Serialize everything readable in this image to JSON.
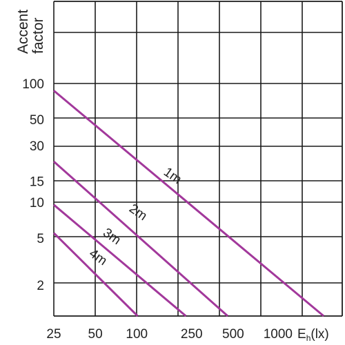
{
  "chart_data": {
    "type": "line",
    "title": "",
    "ylabel": [
      "Accent",
      "factor"
    ],
    "xlabel": "",
    "x_unit": {
      "main": "E",
      "sub": "h",
      "rest": "(lx)"
    },
    "x_ticks": [
      {
        "value": 25,
        "label": "25"
      },
      {
        "value": 50,
        "label": "50"
      },
      {
        "value": 100,
        "label": "100"
      },
      {
        "value": 250,
        "label": "250"
      },
      {
        "value": 500,
        "label": "500"
      },
      {
        "value": 1000,
        "label": "1000"
      }
    ],
    "y_ticks": [
      {
        "value": 100,
        "label": "100"
      },
      {
        "value": 50,
        "label": "50"
      },
      {
        "value": 30,
        "label": "30"
      },
      {
        "value": 15,
        "label": "15"
      },
      {
        "value": 10,
        "label": "10"
      },
      {
        "value": 5,
        "label": "5"
      },
      {
        "value": 2,
        "label": "2"
      }
    ],
    "grid": true,
    "series": [
      {
        "name": "1m",
        "x": [
          25,
          2500
        ],
        "y": [
          87,
          1
        ]
      },
      {
        "name": "2m",
        "x": [
          25,
          500
        ],
        "y": [
          22,
          1
        ]
      },
      {
        "name": "3m",
        "x": [
          25,
          250
        ],
        "y": [
          9.5,
          1
        ]
      },
      {
        "name": "4m",
        "x": [
          25,
          110
        ],
        "y": [
          5.5,
          1
        ]
      }
    ],
    "colors": {
      "line": "#a2389b",
      "grid": "#1a1a1a"
    }
  }
}
